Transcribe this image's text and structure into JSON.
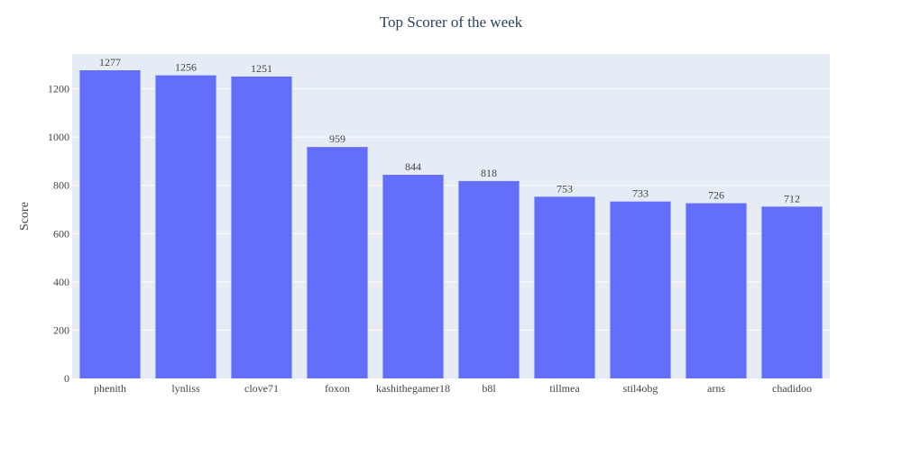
{
  "chart_data": {
    "type": "bar",
    "title": "Top Scorer of the week",
    "xlabel": "",
    "ylabel": "Score",
    "categories": [
      "phenith",
      "lynliss",
      "clove71",
      "foxon",
      "kashithegamer18",
      "b8l",
      "tillmea",
      "stil4obg",
      "arns",
      "chadidoo"
    ],
    "values": [
      1277,
      1256,
      1251,
      959,
      844,
      818,
      753,
      733,
      726,
      712
    ],
    "data_labels": [
      "1277",
      "1256",
      "1251",
      "959",
      "844",
      "818",
      "753",
      "733",
      "726",
      "712"
    ],
    "yticks": [
      0,
      200,
      400,
      600,
      800,
      1000,
      1200
    ],
    "ylim": [
      0,
      1344.2
    ],
    "grid": true,
    "colors": {
      "bar": "#636efa",
      "plot_bg": "#e5ecf6",
      "grid": "#ffffff",
      "title": "#2a3f5f",
      "text": "#444444"
    }
  }
}
